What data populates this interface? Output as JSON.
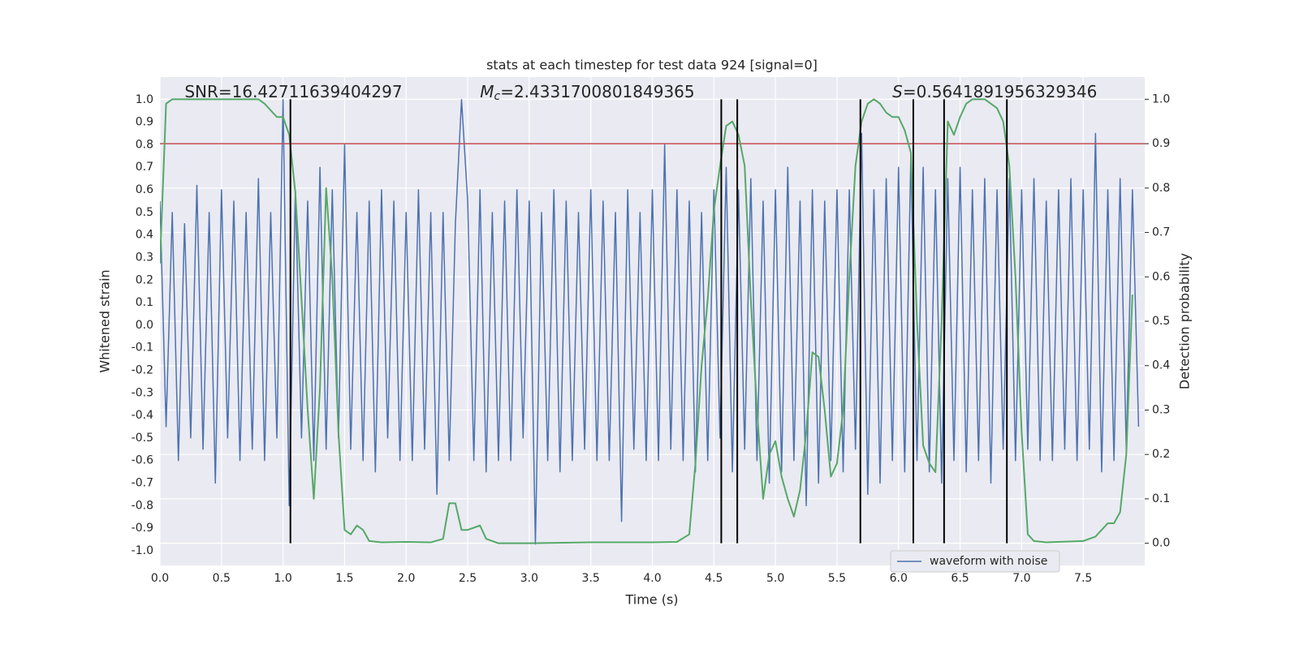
{
  "chart_data": {
    "type": "line",
    "title": "stats at each timestep for test data 924 [signal=0]",
    "x_label": "Time (s)",
    "y_label": "Whitened strain",
    "y2_label": "Detection probability",
    "xlim": [
      0,
      8.0
    ],
    "ylim": [
      -1.065,
      1.1
    ],
    "y2lim": [
      -0.05,
      1.05
    ],
    "xticks": [
      {
        "value": 0,
        "label": "0.0"
      },
      0.5,
      {
        "value": 1,
        "label": "1.0"
      },
      1.5,
      {
        "value": 2,
        "label": "2.0"
      },
      2.5,
      {
        "value": 3,
        "label": "3.0"
      },
      3.5,
      {
        "value": 4,
        "label": "4.0"
      },
      4.5,
      {
        "value": 5,
        "label": "5.0"
      },
      5.5,
      {
        "value": 6,
        "label": "6.0"
      },
      6.5,
      {
        "value": 7,
        "label": "7.0"
      },
      7.5
    ],
    "yticks": [
      {
        "value": -1,
        "label": "-1.0"
      },
      -0.9,
      -0.8,
      -0.7,
      -0.6,
      -0.5,
      -0.4,
      -0.3,
      -0.2,
      -0.1,
      {
        "value": 0,
        "label": "0.0"
      },
      0.1,
      0.2,
      0.3,
      0.4,
      0.5,
      0.6,
      0.7,
      0.8,
      0.9,
      {
        "value": 1,
        "label": "1.0"
      }
    ],
    "y2ticks": [
      {
        "value": 0,
        "label": "0.0"
      },
      0.1,
      0.2,
      0.3,
      0.4,
      0.5,
      0.6,
      0.7,
      0.8,
      0.9,
      {
        "value": 1,
        "label": "1.0"
      }
    ],
    "grid": true,
    "legend": "lower right",
    "series": [
      {
        "name": "waveform with noise",
        "color": "#4c72b0",
        "x": [
          0,
          0.05,
          0.1,
          0.15,
          0.2,
          0.25,
          0.3,
          0.35,
          0.4,
          0.45,
          0.5,
          0.55,
          0.6,
          0.65,
          0.7,
          0.75,
          0.8,
          0.85,
          0.9,
          0.95,
          1.0,
          1.05,
          1.1,
          1.15,
          1.2,
          1.25,
          1.3,
          1.35,
          1.4,
          1.45,
          1.5,
          1.55,
          1.6,
          1.65,
          1.7,
          1.75,
          1.8,
          1.85,
          1.9,
          1.95,
          2.0,
          2.05,
          2.1,
          2.15,
          2.2,
          2.25,
          2.3,
          2.35,
          2.4,
          2.45,
          2.5,
          2.55,
          2.6,
          2.65,
          2.7,
          2.75,
          2.8,
          2.85,
          2.9,
          2.95,
          3.0,
          3.05,
          3.1,
          3.15,
          3.2,
          3.25,
          3.3,
          3.35,
          3.4,
          3.45,
          3.5,
          3.55,
          3.6,
          3.65,
          3.7,
          3.75,
          3.8,
          3.85,
          3.9,
          3.95,
          4.0,
          4.05,
          4.1,
          4.15,
          4.2,
          4.25,
          4.3,
          4.35,
          4.4,
          4.45,
          4.5,
          4.55,
          4.6,
          4.65,
          4.7,
          4.75,
          4.8,
          4.85,
          4.9,
          4.95,
          5.0,
          5.05,
          5.1,
          5.15,
          5.2,
          5.25,
          5.3,
          5.35,
          5.4,
          5.45,
          5.5,
          5.55,
          5.6,
          5.65,
          5.7,
          5.75,
          5.8,
          5.85,
          5.9,
          5.95,
          6.0,
          6.05,
          6.1,
          6.15,
          6.2,
          6.25,
          6.3,
          6.35,
          6.4,
          6.45,
          6.5,
          6.55,
          6.6,
          6.65,
          6.7,
          6.75,
          6.8,
          6.85,
          6.9,
          6.95,
          7.0,
          7.05,
          7.1,
          7.15,
          7.2,
          7.25,
          7.3,
          7.35,
          7.4,
          7.45,
          7.5,
          7.55,
          7.6,
          7.65,
          7.7,
          7.75,
          7.8,
          7.85,
          7.9,
          7.95
        ],
        "values": [
          0.55,
          -0.45,
          0.5,
          -0.6,
          0.45,
          -0.5,
          0.62,
          -0.55,
          0.5,
          -0.7,
          0.6,
          -0.5,
          0.55,
          -0.6,
          0.5,
          -0.55,
          0.65,
          -0.6,
          0.5,
          -0.5,
          1.0,
          -0.8,
          0.6,
          -0.5,
          0.55,
          -0.6,
          0.7,
          -0.55,
          0.6,
          -0.5,
          0.8,
          -0.55,
          0.5,
          -0.6,
          0.55,
          -0.65,
          0.6,
          -0.5,
          0.55,
          -0.6,
          0.5,
          -0.6,
          0.6,
          -0.55,
          0.5,
          -0.75,
          0.5,
          -0.6,
          0.45,
          1.0,
          0.55,
          -0.6,
          0.6,
          -0.65,
          0.5,
          -0.6,
          0.55,
          -0.6,
          0.6,
          -0.5,
          0.55,
          -0.97,
          0.5,
          -0.6,
          0.6,
          -0.65,
          0.55,
          -0.6,
          0.5,
          -0.55,
          0.6,
          -0.6,
          0.55,
          -0.6,
          0.5,
          -0.87,
          0.6,
          -0.55,
          0.5,
          -0.6,
          0.6,
          -0.6,
          0.8,
          -0.55,
          0.6,
          -0.6,
          0.55,
          -0.65,
          0.5,
          -0.6,
          0.6,
          -0.5,
          0.7,
          -0.65,
          0.6,
          -0.55,
          0.65,
          -0.6,
          0.55,
          -0.7,
          0.6,
          -0.65,
          0.7,
          -0.6,
          0.55,
          -0.8,
          0.6,
          -0.7,
          0.55,
          -0.6,
          0.6,
          -0.65,
          0.6,
          -0.55,
          0.85,
          -0.75,
          0.6,
          -0.7,
          0.65,
          -0.6,
          0.7,
          -0.65,
          0.75,
          -0.6,
          0.7,
          -0.65,
          0.6,
          -0.7,
          0.65,
          -0.6,
          0.7,
          -0.65,
          0.6,
          -0.6,
          0.65,
          -0.7,
          0.6,
          -0.55,
          0.65,
          -0.6,
          0.6,
          -0.55,
          0.65,
          -0.6,
          0.55,
          -0.6,
          0.6,
          -0.55,
          0.65,
          -0.6,
          0.6,
          -0.55,
          0.85,
          -0.65,
          0.6,
          -0.6,
          0.65,
          -0.55,
          0.6,
          -0.45
        ]
      },
      {
        "color": "#55a868",
        "axis": "y2",
        "x": [
          0,
          0.05,
          0.1,
          0.5,
          0.8,
          0.85,
          0.95,
          1.0,
          1.05,
          1.1,
          1.15,
          1.2,
          1.25,
          1.3,
          1.35,
          1.4,
          1.45,
          1.5,
          1.55,
          1.6,
          1.65,
          1.7,
          1.8,
          2.0,
          2.2,
          2.3,
          2.35,
          2.4,
          2.45,
          2.5,
          2.6,
          2.65,
          2.75,
          3.0,
          3.5,
          4.0,
          4.2,
          4.3,
          4.35,
          4.4,
          4.45,
          4.5,
          4.55,
          4.6,
          4.65,
          4.7,
          4.75,
          4.8,
          4.85,
          4.9,
          4.95,
          5.0,
          5.05,
          5.1,
          5.15,
          5.2,
          5.25,
          5.3,
          5.35,
          5.4,
          5.45,
          5.5,
          5.55,
          5.6,
          5.65,
          5.7,
          5.75,
          5.8,
          5.85,
          5.9,
          5.95,
          6.0,
          6.05,
          6.1,
          6.15,
          6.2,
          6.25,
          6.3,
          6.35,
          6.4,
          6.45,
          6.5,
          6.55,
          6.6,
          6.7,
          6.75,
          6.8,
          6.85,
          6.9,
          6.95,
          7.0,
          7.05,
          7.1,
          7.2,
          7.5,
          7.6,
          7.65,
          7.7,
          7.75,
          7.8,
          7.85,
          7.9
        ],
        "values": [
          0.63,
          0.99,
          1.0,
          1.0,
          1.0,
          0.99,
          0.96,
          0.96,
          0.92,
          0.79,
          0.55,
          0.3,
          0.1,
          0.35,
          0.8,
          0.6,
          0.25,
          0.03,
          0.02,
          0.04,
          0.03,
          0.005,
          0.002,
          0.003,
          0.002,
          0.01,
          0.09,
          0.09,
          0.03,
          0.03,
          0.04,
          0.01,
          0.0,
          0.0,
          0.002,
          0.002,
          0.003,
          0.02,
          0.18,
          0.4,
          0.55,
          0.75,
          0.85,
          0.94,
          0.95,
          0.92,
          0.85,
          0.55,
          0.3,
          0.1,
          0.2,
          0.23,
          0.15,
          0.1,
          0.06,
          0.12,
          0.25,
          0.43,
          0.42,
          0.3,
          0.15,
          0.18,
          0.3,
          0.6,
          0.85,
          0.95,
          0.99,
          1.0,
          0.99,
          0.97,
          0.96,
          0.96,
          0.93,
          0.88,
          0.5,
          0.22,
          0.18,
          0.16,
          0.5,
          0.95,
          0.92,
          0.96,
          0.99,
          1.0,
          1.0,
          0.99,
          0.98,
          0.95,
          0.85,
          0.6,
          0.25,
          0.02,
          0.005,
          0.002,
          0.005,
          0.015,
          0.03,
          0.045,
          0.045,
          0.07,
          0.2,
          0.56
        ]
      }
    ],
    "threshold": {
      "value": 0.9,
      "axis": "y2",
      "color": "#c44e52"
    },
    "detections": {
      "x": [
        1.06,
        4.56,
        4.69,
        5.69,
        6.12,
        6.37,
        6.88
      ],
      "y2_range": [
        0,
        1
      ],
      "color": "#000000"
    },
    "annotations": [
      {
        "text": "SNR=16.42711639404297",
        "x": 0.2
      },
      {
        "symbol": "M",
        "subscript": "c",
        "text": "=2.4331700801849365",
        "x": 2.6
      },
      {
        "symbol": "S",
        "text": "=0.5641891956329346",
        "x": 5.95
      }
    ]
  }
}
